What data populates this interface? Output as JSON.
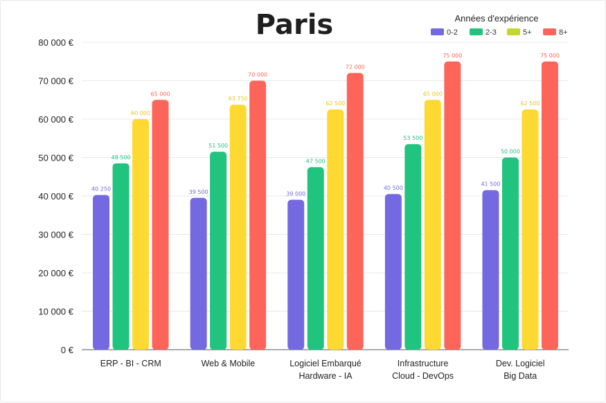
{
  "chart_data": {
    "type": "bar",
    "title": "Paris",
    "legend_title": "Années d'expérience",
    "legend_position": "top-right",
    "grid": true,
    "ylim": [
      0,
      80000
    ],
    "y_ticks": [
      0,
      10000,
      20000,
      30000,
      40000,
      50000,
      60000,
      70000,
      80000
    ],
    "y_tick_labels": [
      "0 €",
      "10 000 €",
      "20 000 €",
      "30 000 €",
      "40 000 €",
      "50 000 €",
      "60 000 €",
      "70 000 €",
      "80 000 €"
    ],
    "categories": [
      [
        "ERP - BI - CRM"
      ],
      [
        "Web & Mobile"
      ],
      [
        "Logiciel Embarqué",
        "Hardware - IA"
      ],
      [
        "Infrastructure",
        "Cloud - DevOps"
      ],
      [
        "Dev. Logiciel",
        "Big Data"
      ]
    ],
    "series": [
      {
        "name": "0-2",
        "color": "#7469e0",
        "values": [
          40250,
          39500,
          39000,
          40500,
          41500
        ],
        "labels": [
          "40 250",
          "39 500",
          "39 000",
          "40 500",
          "41 500"
        ]
      },
      {
        "name": "2-3",
        "color": "#20c47f",
        "values": [
          48500,
          51500,
          47500,
          53500,
          50000
        ],
        "labels": [
          "48 500",
          "51 500",
          "47 500",
          "53 500",
          "50 000"
        ]
      },
      {
        "name": "5+",
        "color": "#fdd932",
        "values": [
          60000,
          63750,
          62500,
          65000,
          62500
        ],
        "labels": [
          "60 000",
          "63 750",
          "62 500",
          "65 000",
          "62 500"
        ]
      },
      {
        "name": "8+",
        "color": "#fe655a",
        "values": [
          65000,
          70000,
          72000,
          75000,
          75000
        ],
        "labels": [
          "65 000",
          "70 000",
          "72 000",
          "75 000",
          "75 000"
        ]
      }
    ],
    "legend_swatch_colors": [
      "#7469e0",
      "#20c47f",
      "#c3d82a",
      "#fe655a"
    ]
  }
}
